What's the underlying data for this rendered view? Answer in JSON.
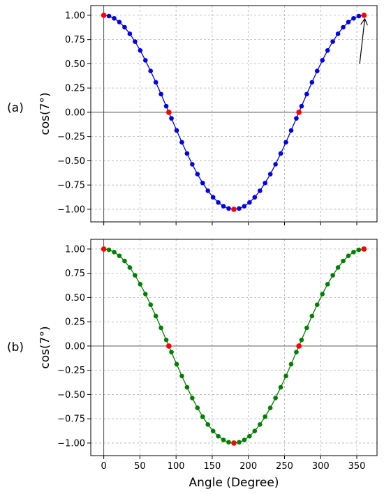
{
  "chart_data": [
    {
      "type": "line",
      "panel_label": "(a)",
      "ylabel": "cos(7°)",
      "xlabel": "",
      "xlim": [
        -18,
        378
      ],
      "ylim": [
        -1.13,
        1.1
      ],
      "xticks": [
        0,
        50,
        100,
        150,
        200,
        250,
        300,
        350
      ],
      "yticks": [
        1.0,
        0.75,
        0.5,
        0.25,
        0.0,
        -0.25,
        -0.5,
        -0.75,
        -1.0
      ],
      "ytick_labels": [
        "1.00",
        "0.75",
        "0.50",
        "0.25",
        "0.00",
        "−0.25",
        "−0.50",
        "−0.75",
        "−1.00"
      ],
      "show_xtick_labels": false,
      "grid": true,
      "series": [
        {
          "color": "#0000ee",
          "x_start": 0,
          "x_end": 360,
          "x_step": 7.2,
          "function": "cos(x°)"
        }
      ],
      "highlight_points": {
        "color": "#ff0000",
        "x": [
          0,
          90,
          180,
          270,
          360
        ],
        "y": [
          1.0,
          0.0,
          -1.0,
          0.0,
          1.0
        ]
      },
      "annotation": {
        "type": "arrow",
        "from": [
          354,
          0.5
        ],
        "to": [
          360,
          1.0
        ]
      },
      "reference_lines": {
        "x": 0,
        "y": 0
      }
    },
    {
      "type": "line",
      "panel_label": "(b)",
      "ylabel": "cos(7°)",
      "xlabel": "Angle (Degree)",
      "xlim": [
        -18,
        378
      ],
      "ylim": [
        -1.13,
        1.1
      ],
      "xticks": [
        0,
        50,
        100,
        150,
        200,
        250,
        300,
        350
      ],
      "xtick_labels": [
        "0",
        "50",
        "100",
        "150",
        "200",
        "250",
        "300",
        "350"
      ],
      "yticks": [
        1.0,
        0.75,
        0.5,
        0.25,
        0.0,
        -0.25,
        -0.5,
        -0.75,
        -1.0
      ],
      "ytick_labels": [
        "1.00",
        "0.75",
        "0.50",
        "0.25",
        "0.00",
        "−0.25",
        "−0.50",
        "−0.75",
        "−1.00"
      ],
      "show_xtick_labels": true,
      "grid": true,
      "series": [
        {
          "color": "#008000",
          "x_start": 0,
          "x_end": 360,
          "x_step": 7.2,
          "function": "cos(x°)"
        }
      ],
      "highlight_points": {
        "color": "#ff0000",
        "x": [
          0,
          90,
          180,
          270,
          360
        ],
        "y": [
          1.0,
          0.0,
          -1.0,
          0.0,
          1.0
        ]
      },
      "reference_lines": {
        "x": 0,
        "y": 0
      }
    }
  ]
}
